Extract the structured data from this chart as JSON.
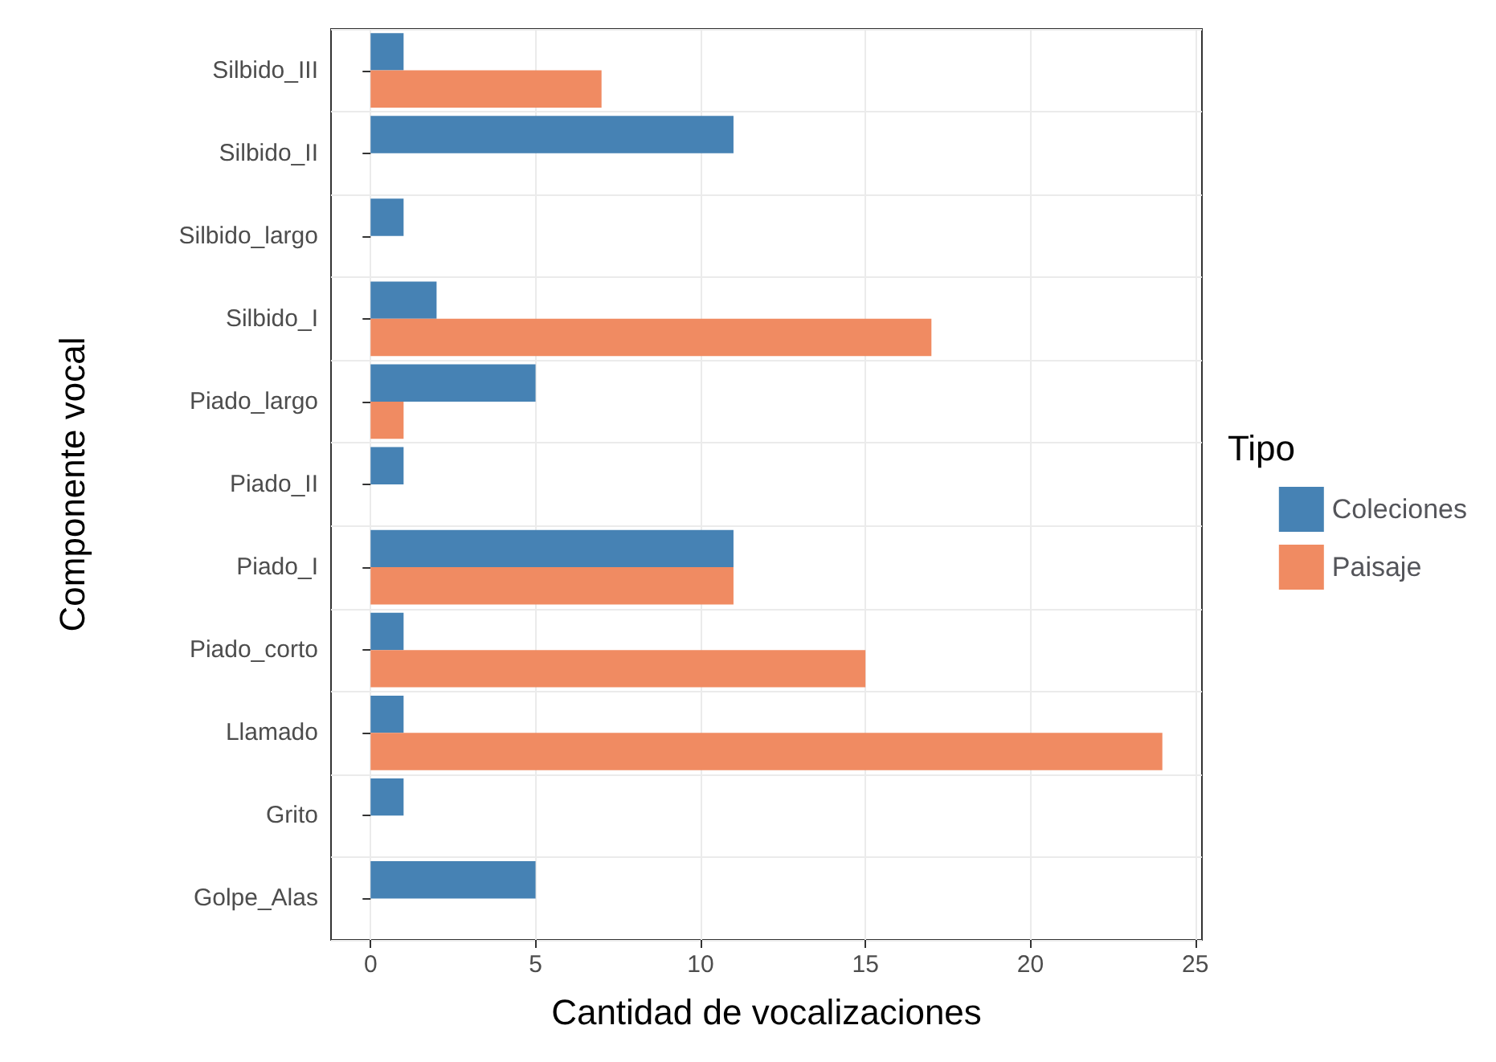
{
  "chart_data": {
    "type": "bar",
    "orientation": "horizontal",
    "xlabel": "Cantidad de vocalizaciones",
    "ylabel": "Componente vocal",
    "legend_title": "Tipo",
    "legend": "right",
    "categories": [
      "Silbido_III",
      "Silbido_II",
      "Silbido_largo",
      "Silbido_I",
      "Piado_largo",
      "Piado_II",
      "Piado_I",
      "Piado_corto",
      "Llamado",
      "Grito",
      "Golpe_Alas"
    ],
    "series": [
      {
        "name": "Coleciones",
        "color": "#4682b4",
        "values": [
          1,
          11,
          1,
          2,
          5,
          1,
          11,
          1,
          1,
          1,
          5
        ]
      },
      {
        "name": "Paisaje",
        "color": "#f08b62",
        "values": [
          7,
          null,
          null,
          17,
          1,
          null,
          11,
          15,
          24,
          null,
          null
        ]
      }
    ],
    "xlim": [
      -1.2,
      25.2
    ],
    "xticks": [
      0,
      5,
      10,
      15,
      20,
      25
    ],
    "grid": true
  }
}
